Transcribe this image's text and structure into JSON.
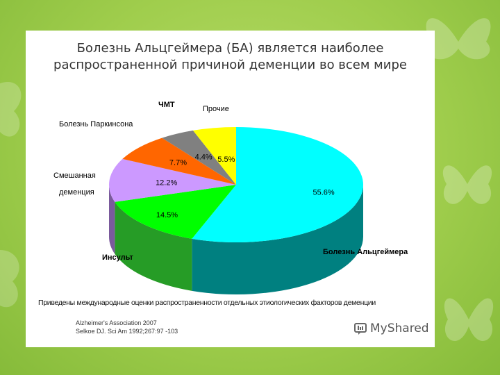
{
  "slide": {
    "title_line1": "Болезнь Альцгеймера (БА) является наиболее",
    "title_line2": "распространенной причиной деменции во всем мире"
  },
  "chart_data": {
    "type": "pie",
    "title": "",
    "slices": [
      {
        "label": "Болезнь Альцгеймера",
        "value": 55.6,
        "value_label": "55.6%",
        "color": "#00ffff",
        "side_color": "#008080"
      },
      {
        "label": "Инсульт",
        "value": 14.5,
        "value_label": "14.5%",
        "color": "#00ff00",
        "side_color": "#269c26"
      },
      {
        "label": "Смешанная деменция",
        "value": 12.2,
        "value_label": "12.2%",
        "color": "#cc99ff",
        "side_color": "#7a5a9c"
      },
      {
        "label": "Болезнь Паркинсона",
        "value": 7.7,
        "value_label": "7.7%",
        "color": "#ff6600",
        "side_color": "#a04010"
      },
      {
        "label": "ЧМТ",
        "value": 4.4,
        "value_label": "4.4%",
        "color": "#808080",
        "side_color": "#505050"
      },
      {
        "label": "Прочие",
        "value": 5.5,
        "value_label": "5.5%",
        "color": "#ffff00",
        "side_color": "#a8a800"
      }
    ],
    "category_labels": {
      "alz": "Болезнь Альцгеймера",
      "stroke": "Инсульт",
      "mixed_line1": "Смешанная",
      "mixed_line2": "деменция",
      "park": "Болезнь Паркинсона",
      "tbi": "ЧМТ",
      "other": "Прочие"
    }
  },
  "footnote": "Приведены  международные оценки распространенности отдельных этиологических факторов деменции",
  "references": [
    "Alzheimer's Association 2007",
    "Selkoe DJ. Sci Am 1992;267:97 -103"
  ],
  "watermark": {
    "brand": "MyShared",
    "icon": "myshared-logo-icon"
  }
}
